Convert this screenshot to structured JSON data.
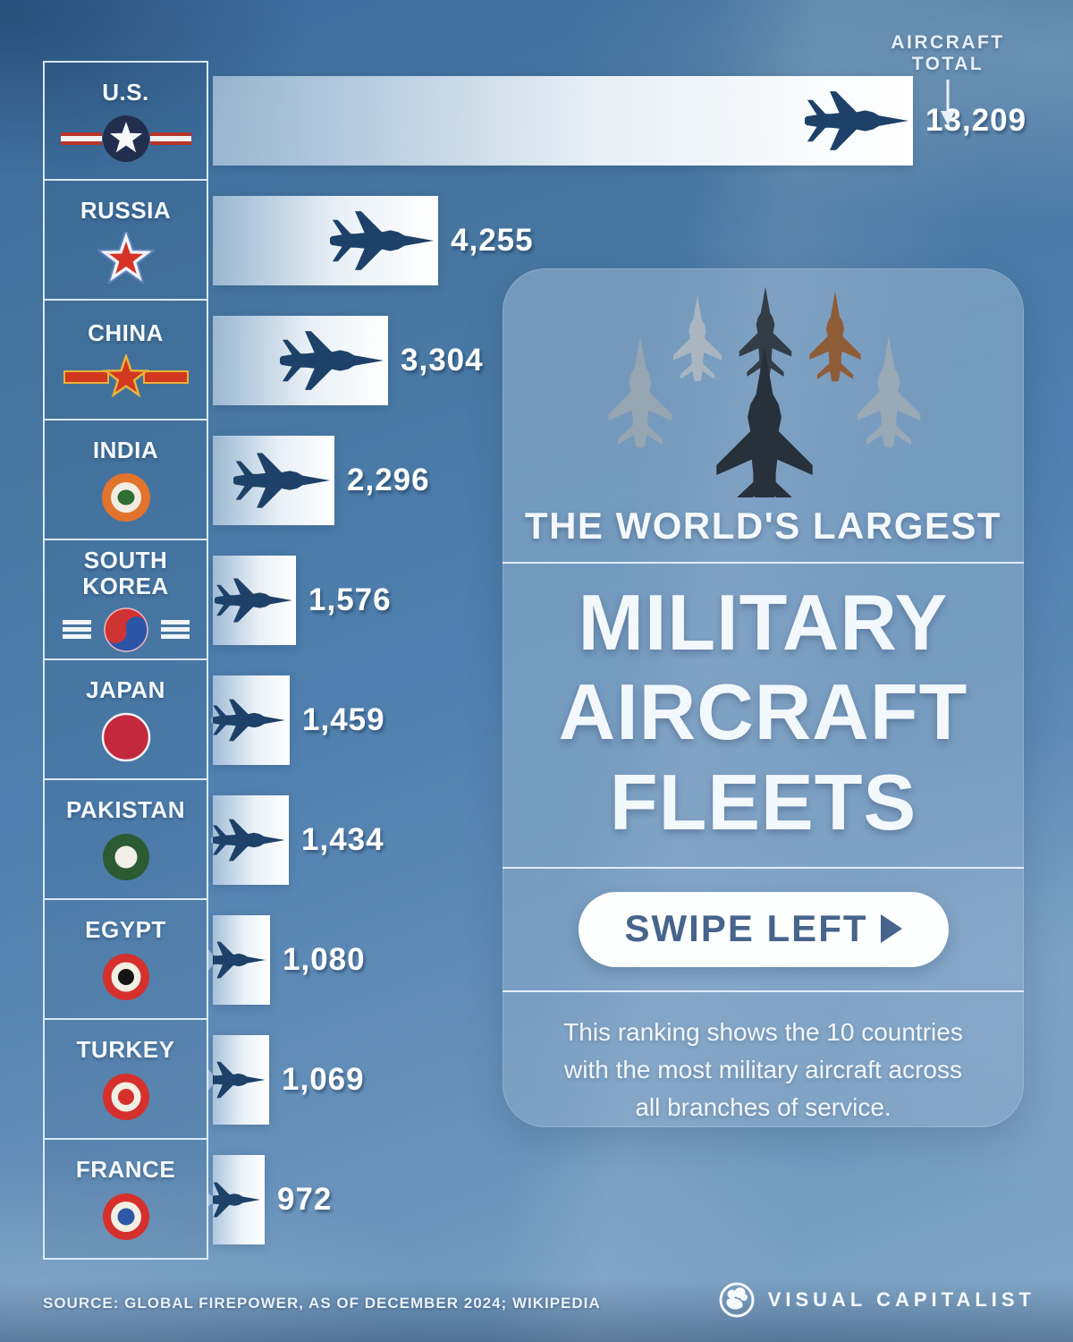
{
  "header": {
    "aircraft_total_label": "AIRCRAFT  TOTAL"
  },
  "chart_data": {
    "type": "bar",
    "title": "The World's Largest Military Aircraft Fleets",
    "orientation": "horizontal",
    "unit": "aircraft",
    "max_value": 13209,
    "categories": [
      "U.S.",
      "RUSSIA",
      "CHINA",
      "INDIA",
      "SOUTH KOREA",
      "JAPAN",
      "PAKISTAN",
      "EGYPT",
      "TURKEY",
      "FRANCE"
    ],
    "values": [
      13209,
      4255,
      3304,
      2296,
      1576,
      1459,
      1434,
      1080,
      1069,
      972
    ],
    "rows": [
      {
        "country": "U.S.",
        "value": 13209,
        "value_label": "13,209",
        "roundel": "us-air-force-roundel"
      },
      {
        "country": "RUSSIA",
        "value": 4255,
        "value_label": "4,255",
        "roundel": "russia-red-star-roundel"
      },
      {
        "country": "CHINA",
        "value": 3304,
        "value_label": "3,304",
        "roundel": "china-plaaf-roundel"
      },
      {
        "country": "INDIA",
        "value": 2296,
        "value_label": "2,296",
        "roundel": "india-air-force-roundel"
      },
      {
        "country": "SOUTH KOREA",
        "value": 1576,
        "value_label": "1,576",
        "roundel": "south-korea-taegeuk-roundel"
      },
      {
        "country": "JAPAN",
        "value": 1459,
        "value_label": "1,459",
        "roundel": "japan-hinomaru-roundel"
      },
      {
        "country": "PAKISTAN",
        "value": 1434,
        "value_label": "1,434",
        "roundel": "pakistan-roundel"
      },
      {
        "country": "EGYPT",
        "value": 1080,
        "value_label": "1,080",
        "roundel": "egypt-roundel"
      },
      {
        "country": "TURKEY",
        "value": 1069,
        "value_label": "1,069",
        "roundel": "turkey-roundel"
      },
      {
        "country": "FRANCE",
        "value": 972,
        "value_label": "972",
        "roundel": "france-roundel"
      }
    ]
  },
  "panel": {
    "kicker": "THE WORLD'S LARGEST",
    "title_lines": {
      "0": "MILITARY",
      "1": "AIRCRAFT",
      "2": "FLEETS"
    },
    "swipe_button": "SWIPE LEFT",
    "description": "This ranking shows the 10 countries with the most military aircraft across all branches of service."
  },
  "footer": {
    "source": "SOURCE: GLOBAL FIREPOWER, AS OF DECEMBER 2024; WIKIPEDIA",
    "brand": "VISUAL CAPITALIST"
  },
  "icons": {
    "jet_silhouette": "f35-top-view-jet",
    "formation": "six-fighter-jet-formation-photo",
    "arrow_down": "down-arrow",
    "swipe_arrow": "right-triangle-arrow",
    "brand_logo": "visual-capitalist-hand-logo"
  },
  "colors": {
    "sky_blue": "#4f7fae",
    "bar_white": "#ffffff",
    "jet_navy": "#1d4168",
    "panel_overlay": "rgba(170,196,220,0.40)",
    "swipe_text": "#47648c",
    "roundel_red": "#d6302c"
  }
}
